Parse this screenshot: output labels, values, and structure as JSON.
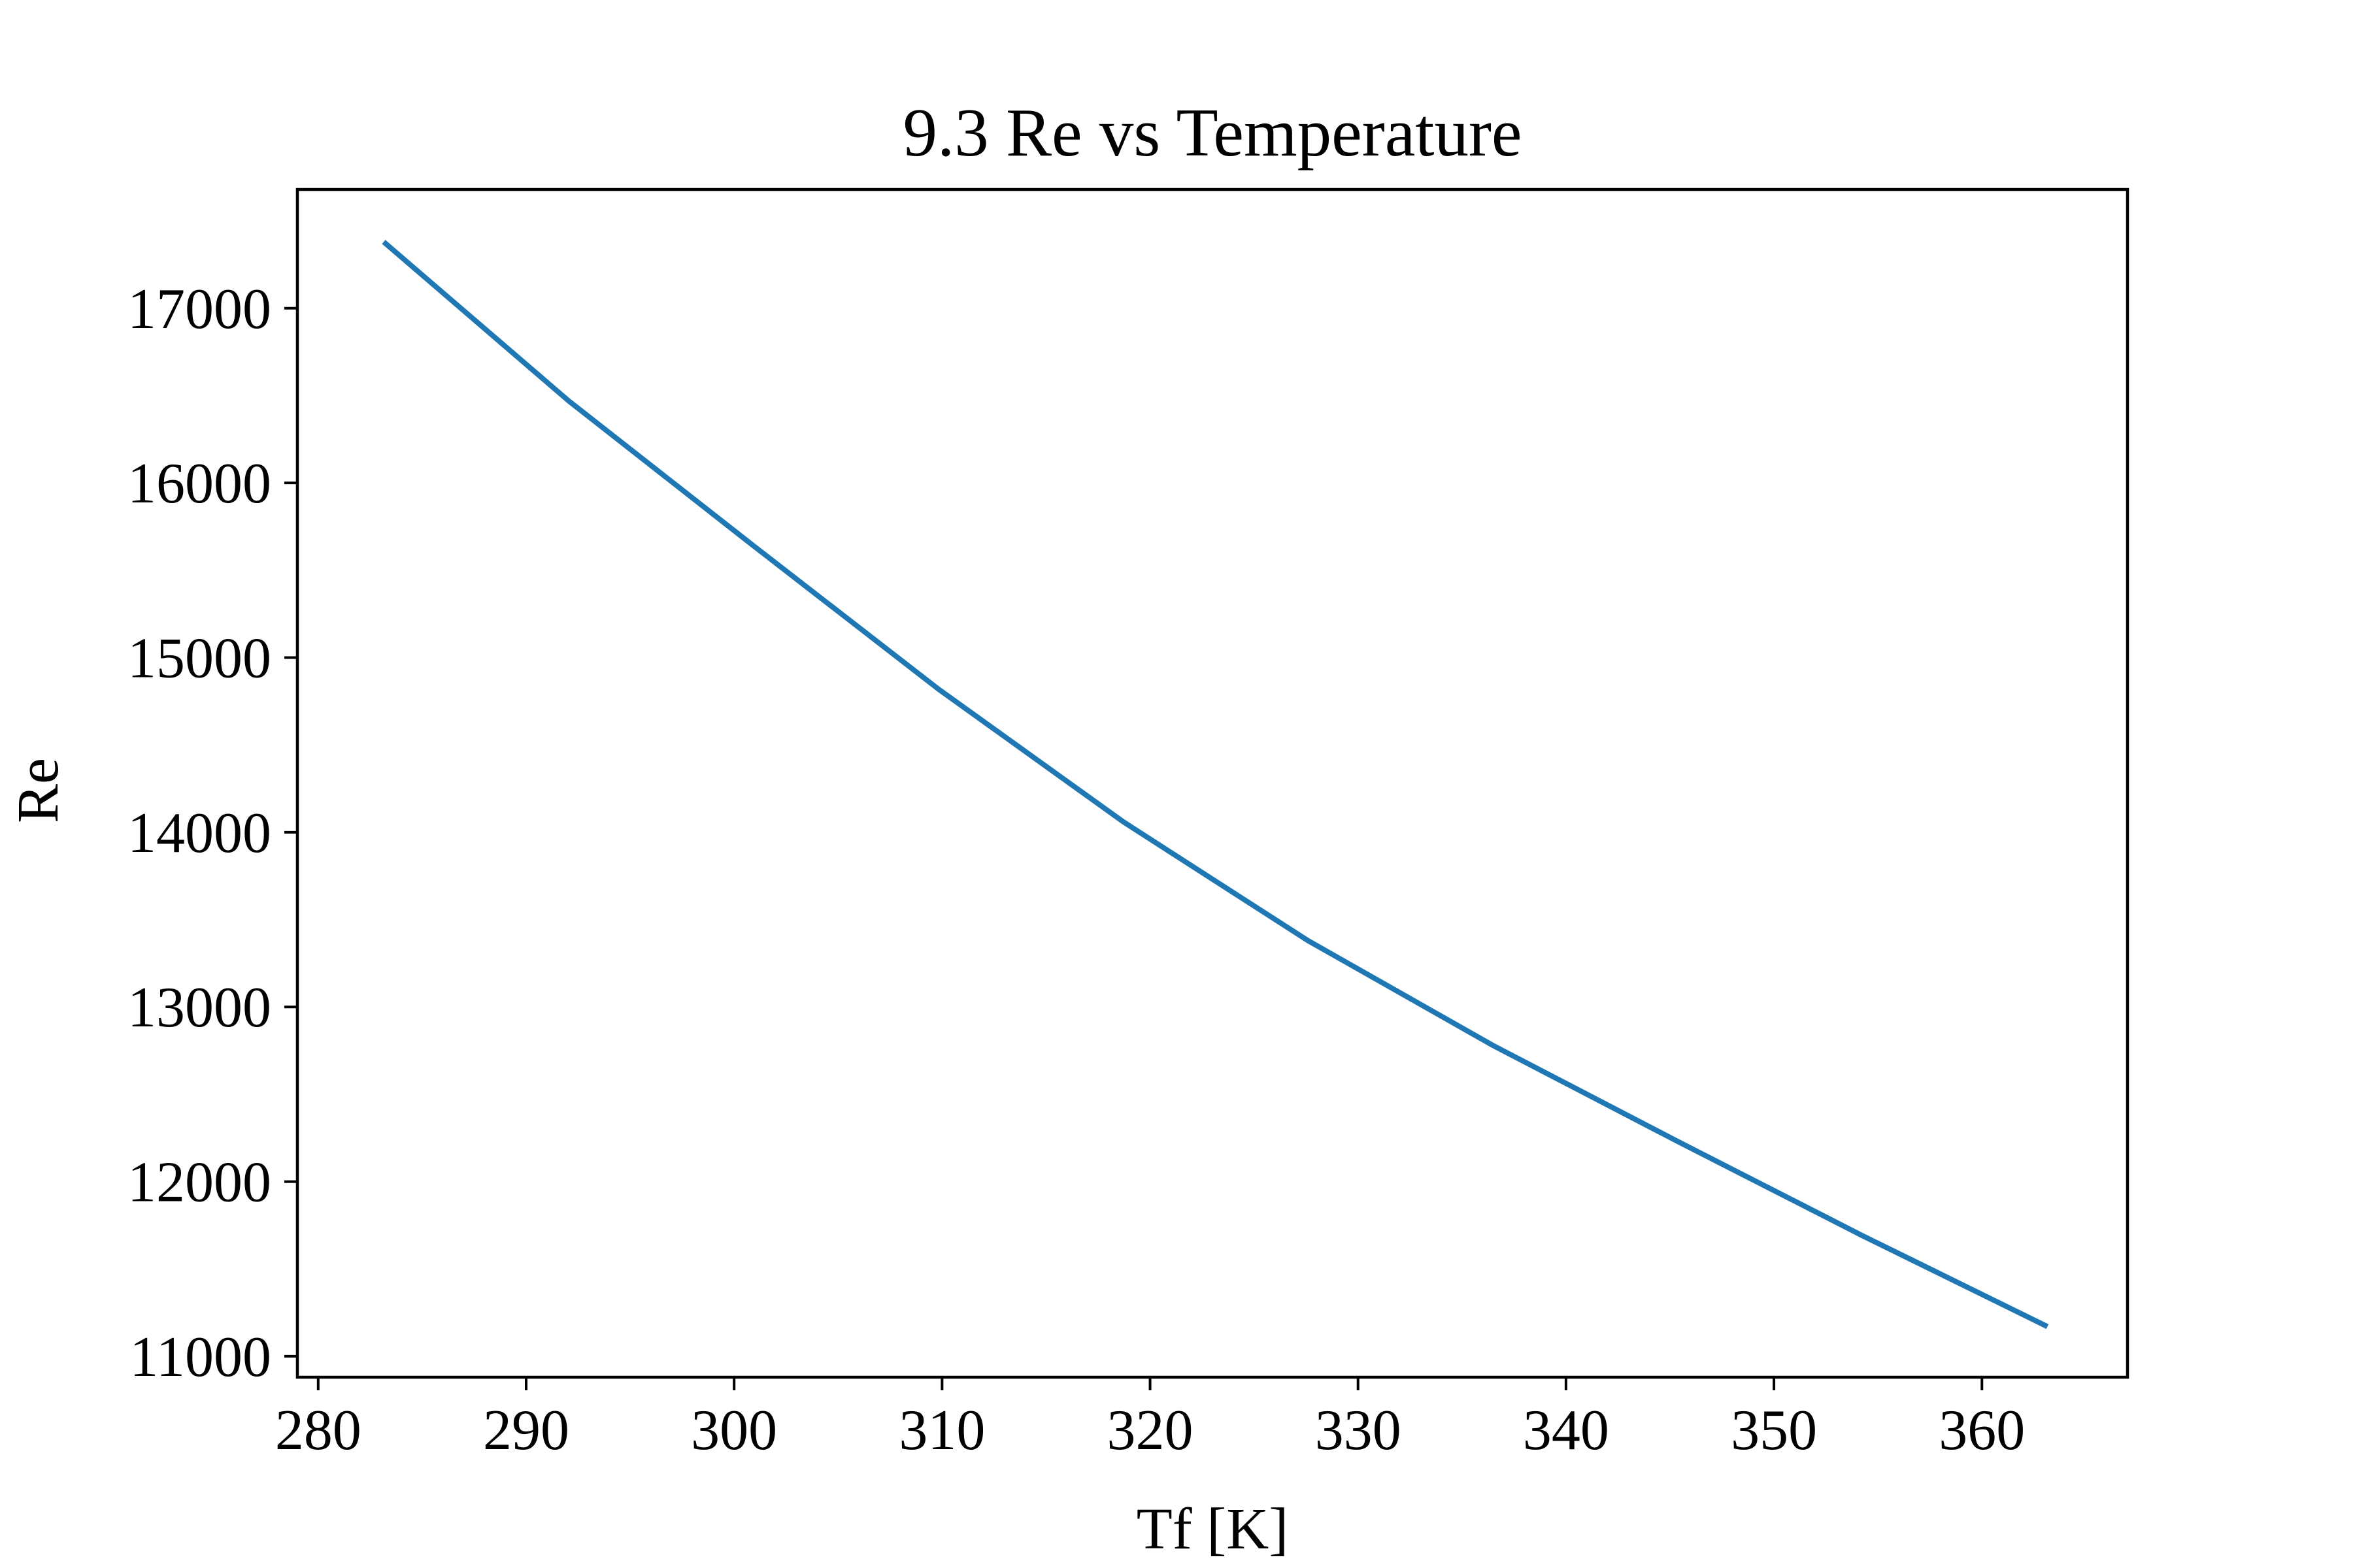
{
  "chart_data": {
    "type": "line",
    "title": "9.3 Re vs Temperature",
    "xlabel": "Tf [K]",
    "ylabel": "Re",
    "xlim": [
      279.0,
      367.0
    ],
    "ylim": [
      10880,
      17680
    ],
    "xticks": [
      280,
      290,
      300,
      310,
      320,
      330,
      340,
      350,
      360
    ],
    "yticks": [
      11000,
      12000,
      13000,
      14000,
      15000,
      16000,
      17000
    ],
    "grid": false,
    "series": [
      {
        "color": "#1f77b4",
        "x": [
          283.15,
          292.04,
          300.93,
          309.82,
          318.71,
          327.59,
          336.48,
          345.37,
          354.26,
          363.15
        ],
        "y": [
          17380,
          16470,
          15640,
          14820,
          14060,
          13380,
          12780,
          12230,
          11690,
          11170
        ]
      }
    ]
  }
}
